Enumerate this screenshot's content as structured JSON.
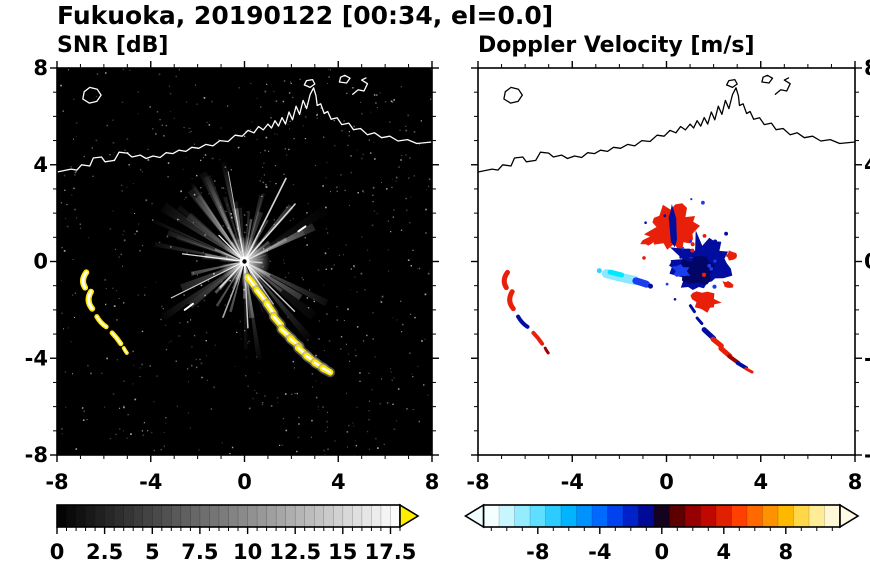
{
  "title": "Fukuoka, 20190122 [00:34, el=0.0]",
  "chart_data": [
    {
      "type": "heatmap",
      "title": "SNR [dB]",
      "xlabel": "",
      "ylabel": "",
      "xlim": [
        -8,
        8
      ],
      "ylim": [
        -8,
        8
      ],
      "xticks": [
        -8,
        -4,
        0,
        4,
        8
      ],
      "yticks": [
        -8,
        -4,
        0,
        4,
        8
      ],
      "minor_tick_step": 1,
      "y_axis_side": "left",
      "background_color": "#000000",
      "colorbar": {
        "orientation": "horizontal",
        "range": [
          0,
          18
        ],
        "cell_step": 0.5,
        "ticks": [
          0,
          2.5,
          5,
          7.5,
          10,
          12.5,
          15,
          17.5
        ],
        "minor_tick_step": 0.5,
        "gradient": [
          "#000000",
          "#ffffff"
        ],
        "over_arrow_color": "#ffee00"
      },
      "radar_center": [
        0,
        0
      ],
      "streaks": {
        "count": 78,
        "seed": 7,
        "max_radius": 4.3,
        "bright_rays": 11
      },
      "gap_wedges": [
        [
          172,
          180
        ],
        [
          97,
          104
        ],
        [
          64,
          70
        ],
        [
          205,
          211
        ]
      ],
      "speckle": {
        "count": 650,
        "seed": 3
      },
      "echo_color": "#ffe800",
      "echo_core_color": "#ffffff",
      "detached_dashes": [
        [
          -2.55,
          -2.0,
          -2.2,
          -1.75
        ],
        [
          2.3,
          1.25,
          2.6,
          1.45
        ]
      ],
      "left_crescents": [
        {
          "p": [
            -6.75,
            -0.45,
            -7.0,
            -0.78,
            -6.8,
            -1.08
          ],
          "w": 6
        },
        {
          "p": [
            -6.55,
            -1.25,
            -6.78,
            -1.62,
            -6.5,
            -1.95
          ],
          "w": 6
        },
        {
          "p": [
            -6.3,
            -2.28,
            -6.14,
            -2.55,
            -5.9,
            -2.7
          ],
          "w": 5
        },
        {
          "p": [
            -5.65,
            -2.95,
            -5.45,
            -3.15,
            -5.28,
            -3.4
          ],
          "w": 5
        },
        {
          "p": [
            -5.15,
            -3.58,
            -5.1,
            -3.68,
            -5.02,
            -3.78
          ],
          "w": 4
        }
      ],
      "chain": [
        {
          "c": [
            0.3,
            -0.85
          ],
          "len": 0.5,
          "ang": -52
        },
        {
          "c": [
            0.75,
            -1.45
          ],
          "len": 0.7,
          "ang": -50
        },
        {
          "c": [
            1.1,
            -1.95
          ],
          "len": 0.5,
          "ang": -55
        },
        {
          "c": [
            1.4,
            -2.45
          ],
          "len": 0.45,
          "ang": -48
        },
        {
          "c": [
            1.8,
            -3.0
          ],
          "len": 0.6,
          "ang": -42
        },
        {
          "c": [
            2.15,
            -3.35
          ],
          "len": 0.5,
          "ang": -38
        },
        {
          "c": [
            2.5,
            -3.75
          ],
          "len": 0.55,
          "ang": -40
        },
        {
          "c": [
            2.85,
            -4.05
          ],
          "len": 0.5,
          "ang": -35
        },
        {
          "c": [
            3.2,
            -4.3
          ],
          "len": 0.45,
          "ang": -30
        },
        {
          "c": [
            3.5,
            -4.5
          ],
          "len": 0.35,
          "ang": -28
        }
      ]
    },
    {
      "type": "heatmap",
      "title": "Doppler Velocity [m/s]",
      "xlabel": "",
      "ylabel": "",
      "xlim": [
        -8,
        8
      ],
      "ylim": [
        -8,
        8
      ],
      "xticks": [
        -8,
        -4,
        0,
        4,
        8
      ],
      "yticks": [
        -8,
        -4,
        0,
        4,
        8
      ],
      "minor_tick_step": 1,
      "y_axis_side": "right",
      "background_color": "#ffffff",
      "colorbar": {
        "orientation": "horizontal",
        "range": [
          -11.5,
          11.5
        ],
        "cell_step": 1,
        "ticks": [
          -8,
          -4,
          0,
          4,
          8
        ],
        "minor_tick_step": 1,
        "cell_colors": [
          "#f4ffff",
          "#c8f6ff",
          "#96ecff",
          "#5fdeff",
          "#2cccff",
          "#00b4ff",
          "#0092ff",
          "#006aff",
          "#0042ee",
          "#0022c8",
          "#000a96",
          "#14021e",
          "#5c0000",
          "#960000",
          "#c00800",
          "#e02000",
          "#ff4000",
          "#ff6a00",
          "#ff9200",
          "#ffb800",
          "#ffd84a",
          "#ffec96",
          "#fff8d8"
        ],
        "under_arrow_color": "#f2ffff",
        "over_arrow_color": "#fffbe6"
      },
      "colors": {
        "red": "#e8200a",
        "dark_red": "#a00000",
        "navy": "#000d9e",
        "dark_navy": "#000566",
        "royal": "#1b3df0",
        "cyan": "#32d2ff",
        "bright_cyan": "#00e8ff",
        "light_cyan": "#8ce8ff"
      },
      "cluster": [
        {
          "kind": "spiky",
          "c": [
            0.35,
            1.45
          ],
          "rx": 1.25,
          "ry": 1.05,
          "rot": -10,
          "n": 26,
          "jag": 0.55,
          "seed": 11,
          "color": "red"
        },
        {
          "kind": "spiky",
          "c": [
            -0.75,
            0.85
          ],
          "rx": 0.32,
          "ry": 0.22,
          "rot": 20,
          "n": 10,
          "jag": 0.5,
          "seed": 12,
          "color": "red"
        },
        {
          "kind": "spiky",
          "c": [
            0.3,
            1.3
          ],
          "rx": 0.16,
          "ry": 0.9,
          "rot": 4,
          "n": 12,
          "jag": 0.4,
          "seed": 13,
          "color": "navy"
        },
        {
          "kind": "spiky",
          "c": [
            1.45,
            -0.15
          ],
          "rx": 1.35,
          "ry": 1.2,
          "rot": 15,
          "n": 30,
          "jag": 0.5,
          "seed": 14,
          "color": "navy"
        },
        {
          "kind": "spiky",
          "c": [
            1.3,
            -0.35
          ],
          "rx": 0.8,
          "ry": 0.65,
          "rot": 0,
          "n": 18,
          "jag": 0.45,
          "seed": 15,
          "color": "dark_navy"
        },
        {
          "kind": "spiky",
          "c": [
            0.6,
            -0.4
          ],
          "rx": 0.38,
          "ry": 0.3,
          "rot": 0,
          "n": 12,
          "jag": 0.5,
          "seed": 16,
          "color": "royal"
        },
        {
          "kind": "spiky",
          "c": [
            1.6,
            -1.62
          ],
          "rx": 0.72,
          "ry": 0.42,
          "rot": -20,
          "n": 16,
          "jag": 0.55,
          "seed": 17,
          "color": "red"
        },
        {
          "kind": "spiky",
          "c": [
            2.75,
            0.25
          ],
          "rx": 0.3,
          "ry": 0.2,
          "rot": 0,
          "n": 10,
          "jag": 0.5,
          "seed": 18,
          "color": "red"
        },
        {
          "kind": "spiky",
          "c": [
            2.6,
            -0.95
          ],
          "rx": 0.26,
          "ry": 0.18,
          "rot": -30,
          "n": 10,
          "jag": 0.5,
          "seed": 19,
          "color": "red"
        },
        {
          "kind": "capsule",
          "p": [
            -2.55,
            -0.5,
            -1.95,
            -0.66,
            -1.35,
            -0.78
          ],
          "w": 9,
          "color": "light_cyan"
        },
        {
          "kind": "capsule",
          "p": [
            -2.4,
            -0.44,
            -2.15,
            -0.5,
            -1.9,
            -0.56
          ],
          "w": 5,
          "color": "bright_cyan"
        },
        {
          "kind": "capsule",
          "p": [
            -1.3,
            -0.8,
            -1.08,
            -0.86,
            -0.85,
            -0.94
          ],
          "w": 7,
          "color": "royal"
        },
        {
          "kind": "dot",
          "c": [
            -2.85,
            -0.38
          ],
          "r": 2.5,
          "color": "cyan"
        },
        {
          "kind": "dot",
          "c": [
            -0.68,
            -1.02
          ],
          "r": 2.5,
          "color": "navy"
        }
      ],
      "flecks": {
        "count": 24,
        "seed": 5,
        "center": [
          1.1,
          0.3
        ],
        "radius": 2.4,
        "palette": [
          "red",
          "navy",
          "royal"
        ]
      },
      "left_crescents": [
        {
          "p": [
            -6.75,
            -0.45,
            -7.0,
            -0.78,
            -6.8,
            -1.08
          ],
          "w": 5,
          "color": "red"
        },
        {
          "p": [
            -6.55,
            -1.25,
            -6.78,
            -1.62,
            -6.5,
            -1.95
          ],
          "w": 5,
          "color": "red"
        },
        {
          "p": [
            -6.3,
            -2.28,
            -6.14,
            -2.55,
            -5.9,
            -2.7
          ],
          "w": 4,
          "color": "navy"
        },
        {
          "p": [
            -5.65,
            -2.95,
            -5.45,
            -3.15,
            -5.28,
            -3.4
          ],
          "w": 4,
          "color": "red"
        },
        {
          "p": [
            -5.15,
            -3.58,
            -5.1,
            -3.68,
            -5.02,
            -3.78
          ],
          "w": 3,
          "color": "dark_red"
        }
      ],
      "chain": [
        {
          "c": [
            1.1,
            -1.95
          ],
          "len": 0.3,
          "ang": -55,
          "color": "navy",
          "w": 3
        },
        {
          "c": [
            1.4,
            -2.45
          ],
          "len": 0.3,
          "ang": -48,
          "color": "navy",
          "w": 3
        },
        {
          "c": [
            1.8,
            -3.0
          ],
          "len": 0.55,
          "ang": -42,
          "color": "navy",
          "w": 5
        },
        {
          "c": [
            2.15,
            -3.35
          ],
          "len": 0.45,
          "ang": -38,
          "color": "red",
          "w": 5
        },
        {
          "c": [
            2.5,
            -3.75
          ],
          "len": 0.5,
          "ang": -40,
          "color": "red",
          "w": 5
        },
        {
          "c": [
            2.85,
            -4.05
          ],
          "len": 0.45,
          "ang": -35,
          "color": "dark_red",
          "w": 4
        },
        {
          "c": [
            3.2,
            -4.3
          ],
          "len": 0.4,
          "ang": -30,
          "color": "navy",
          "w": 4
        },
        {
          "c": [
            3.5,
            -4.5
          ],
          "len": 0.3,
          "ang": -28,
          "color": "red",
          "w": 3
        }
      ]
    }
  ],
  "coastline": {
    "open": [
      [
        [
          -8,
          3.7
        ],
        [
          -7.4,
          3.82
        ],
        [
          -7.15,
          3.78
        ],
        [
          -6.95,
          4.0
        ],
        [
          -6.6,
          3.95
        ],
        [
          -6.45,
          4.28
        ],
        [
          -6.1,
          4.32
        ],
        [
          -5.95,
          4.12
        ],
        [
          -5.55,
          4.18
        ],
        [
          -5.35,
          4.52
        ],
        [
          -5.0,
          4.48
        ],
        [
          -4.8,
          4.32
        ],
        [
          -4.45,
          4.4
        ],
        [
          -4.2,
          4.26
        ],
        [
          -3.9,
          4.36
        ],
        [
          -3.6,
          4.3
        ],
        [
          -3.35,
          4.5
        ],
        [
          -3.05,
          4.46
        ],
        [
          -2.8,
          4.6
        ],
        [
          -2.5,
          4.55
        ],
        [
          -2.25,
          4.72
        ],
        [
          -1.95,
          4.68
        ],
        [
          -1.65,
          4.84
        ],
        [
          -1.35,
          4.78
        ],
        [
          -1.05,
          5.0
        ],
        [
          -0.7,
          4.96
        ],
        [
          -0.4,
          5.22
        ],
        [
          -0.1,
          5.18
        ],
        [
          0.15,
          5.42
        ],
        [
          0.4,
          5.32
        ],
        [
          0.6,
          5.58
        ],
        [
          0.8,
          5.44
        ],
        [
          1.0,
          5.68
        ],
        [
          1.15,
          5.52
        ],
        [
          1.3,
          5.82
        ],
        [
          1.45,
          5.6
        ],
        [
          1.6,
          5.95
        ],
        [
          1.75,
          5.68
        ],
        [
          1.9,
          6.18
        ],
        [
          2.05,
          5.86
        ],
        [
          2.2,
          6.42
        ],
        [
          2.35,
          6.08
        ],
        [
          2.5,
          6.66
        ],
        [
          2.65,
          6.32
        ],
        [
          2.8,
          6.9
        ],
        [
          2.95,
          7.18
        ],
        [
          3.05,
          6.85
        ],
        [
          3.1,
          6.45
        ],
        [
          3.25,
          6.52
        ],
        [
          3.4,
          6.12
        ],
        [
          3.55,
          6.2
        ],
        [
          3.7,
          5.88
        ],
        [
          3.95,
          5.94
        ],
        [
          4.15,
          5.66
        ],
        [
          4.45,
          5.72
        ],
        [
          4.65,
          5.45
        ],
        [
          4.95,
          5.5
        ],
        [
          5.25,
          5.24
        ],
        [
          5.55,
          5.32
        ],
        [
          5.85,
          5.12
        ],
        [
          6.2,
          5.18
        ],
        [
          6.55,
          4.98
        ],
        [
          6.95,
          5.04
        ],
        [
          7.35,
          4.88
        ],
        [
          8,
          4.94
        ]
      ],
      [
        [
          4.6,
          6.9
        ],
        [
          4.85,
          7.1
        ],
        [
          5.1,
          7.05
        ],
        [
          5.25,
          7.35
        ],
        [
          5.0,
          7.5
        ],
        [
          5.2,
          7.6
        ]
      ]
    ],
    "closed": [
      [
        [
          -6.9,
          6.72
        ],
        [
          -6.62,
          6.55
        ],
        [
          -6.3,
          6.62
        ],
        [
          -6.12,
          6.88
        ],
        [
          -6.28,
          7.12
        ],
        [
          -6.6,
          7.2
        ],
        [
          -6.84,
          7.02
        ]
      ],
      [
        [
          2.55,
          7.3
        ],
        [
          2.8,
          7.2
        ],
        [
          3.0,
          7.34
        ],
        [
          2.9,
          7.52
        ],
        [
          2.65,
          7.48
        ]
      ],
      [
        [
          4.05,
          7.42
        ],
        [
          4.35,
          7.38
        ],
        [
          4.5,
          7.58
        ],
        [
          4.28,
          7.7
        ],
        [
          4.1,
          7.62
        ]
      ]
    ]
  }
}
